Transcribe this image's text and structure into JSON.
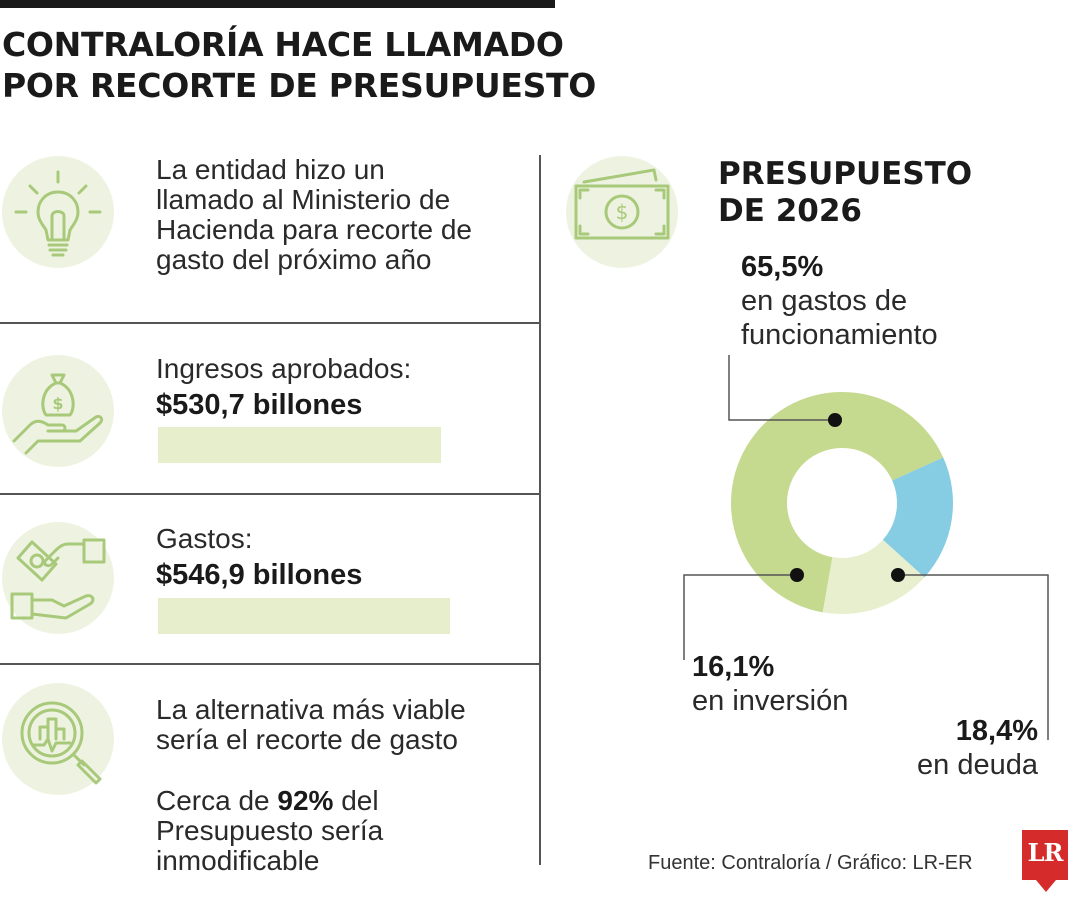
{
  "title": {
    "line1": "CONTRALORÍA HACE LLAMADO",
    "line2": "POR RECORTE DE PRESUPUESTO"
  },
  "rows": [
    {
      "icon": "lightbulb-icon",
      "lines": [
        "La entidad hizo un",
        "llamado al Ministerio de",
        "Hacienda para recorte de",
        "gasto del próximo año"
      ]
    },
    {
      "icon": "money-bag-hand-icon",
      "label": "Ingresos aprobados:",
      "amount": "$530,7 billones",
      "value": 530.7
    },
    {
      "icon": "money-exchange-hands-icon",
      "label": "Gastos:",
      "amount": "$546,9 billones",
      "value": 546.9
    },
    {
      "icon": "magnifier-chart-icon",
      "lines": [
        "La alternativa más viable",
        "sería el recorte de gasto"
      ],
      "note_pre": "Cerca de ",
      "note_bold": "92%",
      "note_post": " del",
      "note_lines": [
        "Presupuesto sería",
        "inmodificable"
      ]
    }
  ],
  "chart_data": {
    "type": "pie",
    "title": "PRESUPUESTO DE 2026",
    "title_lines": [
      "PRESUPUESTO",
      "DE 2026"
    ],
    "icon": "banknote-icon",
    "slices": [
      {
        "pct": "65,5%",
        "value": 65.5,
        "desc_lines": [
          "en gastos de",
          "funcionamiento"
        ],
        "color": "#c5d98f"
      },
      {
        "pct": "18,4%",
        "value": 18.4,
        "desc_lines": [
          "en deuda"
        ],
        "color": "#86cde3"
      },
      {
        "pct": "16,1%",
        "value": 16.1,
        "desc_lines": [
          "en inversión"
        ],
        "color": "#e8efce"
      }
    ]
  },
  "colors": {
    "icon_green": "#a8c97a",
    "circle_bg": "#eef3e1",
    "bar_fill": "#e7eecb"
  },
  "source": "Fuente: Contraloría / Gráfico: LR-ER",
  "logo": "LR"
}
